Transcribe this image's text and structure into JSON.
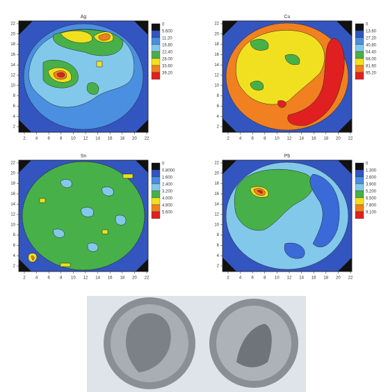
{
  "panels": [
    {
      "title": "Ag",
      "xticks": [
        "2",
        "4",
        "6",
        "8",
        "10",
        "12",
        "14",
        "16",
        "18",
        "20",
        "22"
      ],
      "yticks": [
        "2",
        "4",
        "6",
        "8",
        "10",
        "12",
        "14",
        "16",
        "18",
        "20",
        "22"
      ],
      "legend": [
        "0",
        "5.600",
        "11.20",
        "16.80",
        "22.40",
        "28.00",
        "33.60",
        "39.20"
      ]
    },
    {
      "title": "Cu",
      "xticks": [
        "2",
        "4",
        "6",
        "8",
        "10",
        "12",
        "14",
        "16",
        "18",
        "20",
        "22"
      ],
      "yticks": [
        "2",
        "4",
        "6",
        "8",
        "10",
        "12",
        "14",
        "16",
        "18",
        "20",
        "22"
      ],
      "legend": [
        "0",
        "13.60",
        "27.20",
        "40.80",
        "54.40",
        "68.00",
        "81.60",
        "95.20"
      ]
    },
    {
      "title": "Sn",
      "xticks": [
        "2",
        "4",
        "6",
        "8",
        "10",
        "12",
        "14",
        "16",
        "18",
        "20",
        "22"
      ],
      "yticks": [
        "2",
        "4",
        "6",
        "8",
        "10",
        "12",
        "14",
        "16",
        "18",
        "20",
        "22"
      ],
      "legend": [
        "0",
        "0.8000",
        "1.600",
        "2.400",
        "3.200",
        "4.000",
        "4.800",
        "5.600"
      ]
    },
    {
      "title": "Pb",
      "xticks": [
        "2",
        "4",
        "6",
        "8",
        "10",
        "12",
        "14",
        "16",
        "18",
        "20",
        "22"
      ],
      "yticks": [
        "2",
        "4",
        "6",
        "8",
        "10",
        "12",
        "14",
        "16",
        "18",
        "20",
        "22"
      ],
      "legend": [
        "0",
        "1.300",
        "2.600",
        "3.900",
        "5.200",
        "6.500",
        "7.800",
        "9.100"
      ]
    }
  ]
}
